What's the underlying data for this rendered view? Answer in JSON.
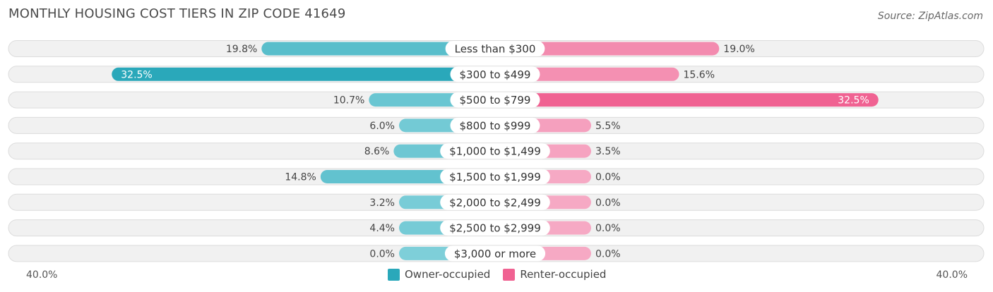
{
  "header": {
    "title": "MONTHLY HOUSING COST TIERS IN ZIP CODE 41649",
    "source": "Source: ZipAtlas.com"
  },
  "chart_data": {
    "type": "bar",
    "orientation": "horizontal-diverging",
    "title": "MONTHLY HOUSING COST TIERS IN ZIP CODE 41649",
    "categories": [
      "Less than $300",
      "$300 to $499",
      "$500 to $799",
      "$800 to $999",
      "$1,000 to $1,499",
      "$1,500 to $1,999",
      "$2,000 to $2,499",
      "$2,500 to $2,999",
      "$3,000 or more"
    ],
    "series": [
      {
        "name": "Owner-occupied",
        "color": "#2aa8ba",
        "values": [
          19.8,
          32.5,
          10.7,
          6.0,
          8.6,
          14.8,
          3.2,
          4.4,
          0.0
        ]
      },
      {
        "name": "Renter-occupied",
        "color": "#f06292",
        "values": [
          19.0,
          15.6,
          32.5,
          5.5,
          3.5,
          0.0,
          0.0,
          0.0,
          0.0
        ]
      }
    ],
    "value_labels": {
      "owner": [
        "19.8%",
        "32.5%",
        "10.7%",
        "6.0%",
        "8.6%",
        "14.8%",
        "3.2%",
        "4.4%",
        "0.0%"
      ],
      "renter": [
        "19.0%",
        "15.6%",
        "32.5%",
        "5.5%",
        "3.5%",
        "0.0%",
        "0.0%",
        "0.0%",
        "0.0%"
      ]
    },
    "axis_range": [
      0,
      40
    ],
    "axis_min_label": "40.0%",
    "axis_max_label": "40.0%",
    "legend_position": "bottom-center"
  },
  "legend": {
    "owner_label": "Owner-occupied",
    "renter_label": "Renter-occupied",
    "owner_color": "#2aa8ba",
    "renter_color": "#f06292"
  }
}
